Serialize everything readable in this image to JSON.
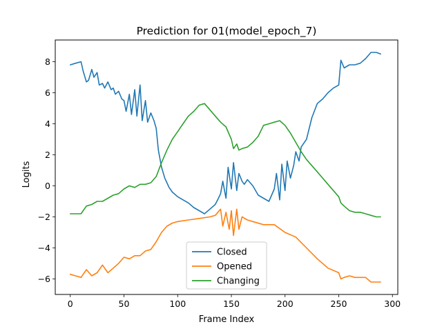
{
  "chart_data": {
    "type": "line",
    "title": "Prediction for 01(model_epoch_7)",
    "xlabel": "Frame Index",
    "ylabel": "Logits",
    "xlim": [
      -14,
      305
    ],
    "ylim": [
      -7.0,
      9.4
    ],
    "xticks": [
      0,
      50,
      100,
      150,
      200,
      250,
      300
    ],
    "yticks": [
      -6,
      -4,
      -2,
      0,
      2,
      4,
      6,
      8
    ],
    "legend_position": "lower-center",
    "grid": false,
    "series": [
      {
        "name": "Closed",
        "color": "#1f77b4",
        "x": [
          0,
          5,
          10,
          12,
          15,
          17,
          20,
          22,
          25,
          27,
          30,
          32,
          35,
          38,
          40,
          42,
          45,
          48,
          50,
          52,
          55,
          57,
          60,
          62,
          65,
          67,
          70,
          72,
          75,
          78,
          80,
          82,
          85,
          88,
          90,
          92,
          95,
          100,
          105,
          110,
          115,
          120,
          125,
          130,
          135,
          138,
          140,
          142,
          145,
          147,
          150,
          152,
          155,
          157,
          160,
          162,
          165,
          170,
          175,
          180,
          185,
          190,
          192,
          195,
          197,
          200,
          202,
          205,
          208,
          210,
          213,
          215,
          220,
          225,
          230,
          235,
          240,
          245,
          250,
          252,
          255,
          260,
          265,
          270,
          275,
          280,
          285,
          289
        ],
        "y": [
          7.8,
          7.9,
          8.0,
          7.4,
          6.7,
          6.8,
          7.5,
          7.0,
          7.3,
          6.5,
          6.6,
          6.3,
          6.7,
          6.2,
          6.3,
          5.9,
          6.1,
          5.6,
          5.5,
          4.8,
          5.9,
          4.6,
          6.2,
          4.5,
          6.5,
          4.2,
          5.5,
          4.1,
          4.7,
          4.2,
          3.7,
          2.3,
          1.2,
          0.5,
          0.2,
          -0.1,
          -0.4,
          -0.7,
          -0.9,
          -1.1,
          -1.4,
          -1.6,
          -1.8,
          -1.5,
          -1.2,
          -0.8,
          -0.5,
          0.3,
          -0.8,
          1.2,
          -0.2,
          1.5,
          -0.3,
          0.8,
          0.3,
          0.1,
          0.4,
          0.0,
          -0.6,
          -0.8,
          -1.0,
          -0.2,
          0.8,
          -0.9,
          1.4,
          -0.3,
          1.6,
          0.5,
          1.3,
          2.2,
          1.6,
          2.5,
          3.0,
          4.4,
          5.3,
          5.6,
          6.0,
          6.3,
          6.5,
          8.1,
          7.6,
          7.8,
          7.8,
          7.9,
          8.2,
          8.6,
          8.6,
          8.5
        ]
      },
      {
        "name": "Opened",
        "color": "#ff7f0e",
        "x": [
          0,
          5,
          10,
          15,
          20,
          25,
          30,
          35,
          40,
          45,
          50,
          55,
          60,
          65,
          70,
          75,
          80,
          85,
          90,
          95,
          100,
          110,
          120,
          130,
          135,
          140,
          142,
          145,
          148,
          150,
          152,
          155,
          157,
          160,
          165,
          170,
          180,
          190,
          200,
          210,
          220,
          230,
          240,
          250,
          252,
          255,
          260,
          265,
          270,
          275,
          280,
          285,
          289
        ],
        "y": [
          -5.7,
          -5.8,
          -5.9,
          -5.4,
          -5.8,
          -5.6,
          -5.1,
          -5.6,
          -5.3,
          -5.0,
          -4.6,
          -4.7,
          -4.5,
          -4.5,
          -4.2,
          -4.1,
          -3.6,
          -3.0,
          -2.6,
          -2.4,
          -2.3,
          -2.2,
          -2.1,
          -2.0,
          -1.9,
          -1.5,
          -2.6,
          -1.7,
          -2.8,
          -1.6,
          -3.2,
          -1.5,
          -2.8,
          -2.0,
          -2.2,
          -2.3,
          -2.5,
          -2.5,
          -3.0,
          -3.3,
          -4.0,
          -4.7,
          -5.3,
          -5.6,
          -6.0,
          -5.9,
          -5.8,
          -5.9,
          -5.9,
          -5.9,
          -6.2,
          -6.2,
          -6.2
        ]
      },
      {
        "name": "Changing",
        "color": "#2ca02c",
        "x": [
          0,
          5,
          10,
          15,
          20,
          25,
          30,
          35,
          40,
          45,
          50,
          55,
          60,
          65,
          70,
          75,
          80,
          85,
          90,
          95,
          100,
          105,
          110,
          115,
          120,
          125,
          130,
          135,
          140,
          145,
          150,
          152,
          155,
          157,
          160,
          165,
          170,
          175,
          180,
          185,
          190,
          195,
          200,
          205,
          210,
          215,
          220,
          230,
          240,
          250,
          252,
          255,
          260,
          265,
          270,
          275,
          280,
          285,
          289
        ],
        "y": [
          -1.8,
          -1.8,
          -1.8,
          -1.3,
          -1.2,
          -1.0,
          -1.0,
          -0.8,
          -0.6,
          -0.5,
          -0.2,
          0.0,
          -0.1,
          0.1,
          0.1,
          0.2,
          0.6,
          1.5,
          2.3,
          3.0,
          3.5,
          4.0,
          4.5,
          4.8,
          5.2,
          5.3,
          4.9,
          4.5,
          4.1,
          3.8,
          3.0,
          2.4,
          2.7,
          2.3,
          2.4,
          2.5,
          2.8,
          3.2,
          3.9,
          4.0,
          4.1,
          4.2,
          3.9,
          3.4,
          2.8,
          2.2,
          1.7,
          0.9,
          0.1,
          -0.7,
          -1.1,
          -1.3,
          -1.6,
          -1.7,
          -1.7,
          -1.8,
          -1.9,
          -2.0,
          -2.0
        ]
      }
    ]
  }
}
